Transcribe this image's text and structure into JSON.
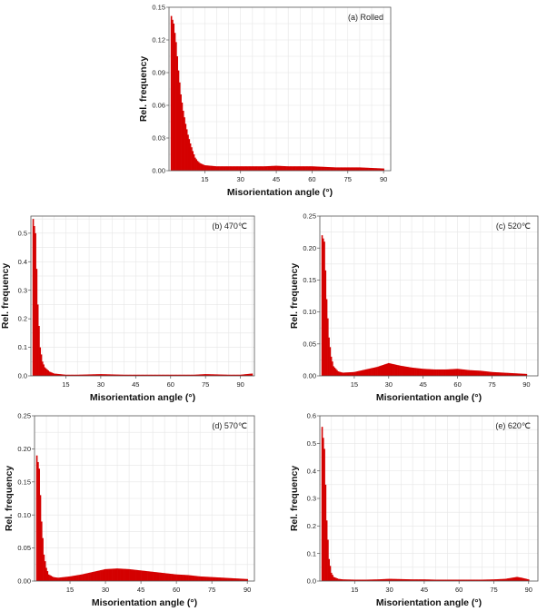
{
  "chart_data": [
    {
      "type": "bar",
      "title": "(a) Rolled",
      "xlabel": "Misorientation angle (°)",
      "ylabel": "Rel. frequency",
      "xlim": [
        0,
        93
      ],
      "ylim": [
        0,
        0.15
      ],
      "xticks": [
        15,
        30,
        45,
        60,
        75,
        90
      ],
      "yticks": [
        0.0,
        0.03,
        0.06,
        0.09,
        0.12,
        0.15
      ],
      "ytick_labels": [
        "0.00",
        "0.03",
        "0.06",
        "0.09",
        "0.12",
        "0.15"
      ],
      "grid": true,
      "bar_color": "#d40000",
      "x": [
        1,
        2,
        3,
        4,
        5,
        6,
        7,
        8,
        9,
        10,
        11,
        12,
        13,
        14,
        15,
        20,
        25,
        30,
        35,
        40,
        45,
        50,
        55,
        60,
        65,
        70,
        75,
        80,
        85,
        90
      ],
      "values": [
        0.142,
        0.135,
        0.118,
        0.092,
        0.07,
        0.055,
        0.043,
        0.033,
        0.025,
        0.018,
        0.012,
        0.009,
        0.007,
        0.006,
        0.005,
        0.004,
        0.004,
        0.004,
        0.004,
        0.004,
        0.0045,
        0.004,
        0.004,
        0.004,
        0.0035,
        0.003,
        0.003,
        0.003,
        0.0025,
        0.002
      ]
    },
    {
      "type": "bar",
      "title": "(b) 470℃",
      "xlabel": "Misorientation angle (°)",
      "ylabel": "Rel. frequency",
      "xlim": [
        0,
        96
      ],
      "ylim": [
        0,
        0.56
      ],
      "xticks": [
        15,
        30,
        45,
        60,
        75,
        90
      ],
      "yticks": [
        0.0,
        0.1,
        0.2,
        0.3,
        0.4,
        0.5
      ],
      "ytick_labels": [
        "0.0",
        "0.1",
        "0.2",
        "0.3",
        "0.4",
        "0.5"
      ],
      "grid": true,
      "bar_color": "#d40000",
      "x": [
        1,
        2,
        3,
        4,
        5,
        6,
        8,
        10,
        15,
        20,
        25,
        30,
        35,
        40,
        45,
        50,
        55,
        60,
        65,
        70,
        75,
        80,
        85,
        90,
        95
      ],
      "values": [
        0.55,
        0.5,
        0.25,
        0.1,
        0.05,
        0.03,
        0.015,
        0.008,
        0.004,
        0.004,
        0.005,
        0.006,
        0.005,
        0.004,
        0.004,
        0.004,
        0.004,
        0.004,
        0.004,
        0.004,
        0.006,
        0.005,
        0.004,
        0.004,
        0.008
      ]
    },
    {
      "type": "bar",
      "title": "(c) 520℃",
      "xlabel": "Misorientation angle (°)",
      "ylabel": "Rel. frequency",
      "xlim": [
        0,
        95
      ],
      "ylim": [
        0,
        0.25
      ],
      "xticks": [
        15,
        30,
        45,
        60,
        75,
        90
      ],
      "yticks": [
        0.0,
        0.05,
        0.1,
        0.15,
        0.2,
        0.25
      ],
      "ytick_labels": [
        "0.00",
        "0.05",
        "0.10",
        "0.15",
        "0.20",
        "0.25"
      ],
      "grid": true,
      "bar_color": "#d40000",
      "x": [
        1,
        2,
        3,
        4,
        5,
        6,
        8,
        10,
        15,
        20,
        25,
        30,
        35,
        40,
        45,
        50,
        55,
        60,
        65,
        70,
        75,
        80,
        85,
        90
      ],
      "values": [
        0.22,
        0.21,
        0.12,
        0.06,
        0.03,
        0.015,
        0.007,
        0.005,
        0.006,
        0.01,
        0.014,
        0.02,
        0.016,
        0.013,
        0.011,
        0.01,
        0.01,
        0.011,
        0.009,
        0.008,
        0.006,
        0.005,
        0.004,
        0.003
      ]
    },
    {
      "type": "bar",
      "title": "(d) 570℃",
      "xlabel": "Misorientation angle (°)",
      "ylabel": "Rel. frequency",
      "xlim": [
        0,
        93
      ],
      "ylim": [
        0,
        0.25
      ],
      "xticks": [
        15,
        30,
        45,
        60,
        75,
        90
      ],
      "yticks": [
        0.0,
        0.05,
        0.1,
        0.15,
        0.2,
        0.25
      ],
      "ytick_labels": [
        "0.00",
        "0.05",
        "0.10",
        "0.15",
        "0.20",
        "0.25"
      ],
      "grid": true,
      "bar_color": "#d40000",
      "x": [
        1,
        2,
        3,
        4,
        5,
        6,
        8,
        10,
        15,
        20,
        25,
        30,
        35,
        40,
        45,
        50,
        55,
        60,
        65,
        70,
        75,
        80,
        85,
        90
      ],
      "values": [
        0.19,
        0.17,
        0.09,
        0.04,
        0.02,
        0.01,
        0.006,
        0.005,
        0.007,
        0.01,
        0.014,
        0.018,
        0.019,
        0.018,
        0.016,
        0.014,
        0.012,
        0.01,
        0.009,
        0.007,
        0.006,
        0.005,
        0.004,
        0.003
      ]
    },
    {
      "type": "bar",
      "title": "(e) 620℃",
      "xlabel": "Misorientation angle (°)",
      "ylabel": "Rel. frequency",
      "xlim": [
        0,
        94
      ],
      "ylim": [
        0,
        0.6
      ],
      "xticks": [
        15,
        30,
        45,
        60,
        75,
        90
      ],
      "yticks": [
        0.0,
        0.1,
        0.2,
        0.3,
        0.4,
        0.5,
        0.6
      ],
      "ytick_labels": [
        "0.0",
        "0.1",
        "0.2",
        "0.3",
        "0.4",
        "0.5",
        "0.6"
      ],
      "grid": true,
      "bar_color": "#d40000",
      "x": [
        1,
        2,
        3,
        4,
        5,
        6,
        8,
        10,
        15,
        20,
        25,
        30,
        35,
        40,
        45,
        50,
        55,
        60,
        65,
        70,
        75,
        80,
        85,
        87,
        90
      ],
      "values": [
        0.56,
        0.48,
        0.22,
        0.08,
        0.03,
        0.015,
        0.008,
        0.006,
        0.005,
        0.005,
        0.006,
        0.008,
        0.007,
        0.006,
        0.006,
        0.005,
        0.005,
        0.005,
        0.005,
        0.005,
        0.006,
        0.008,
        0.015,
        0.012,
        0.006
      ]
    }
  ]
}
